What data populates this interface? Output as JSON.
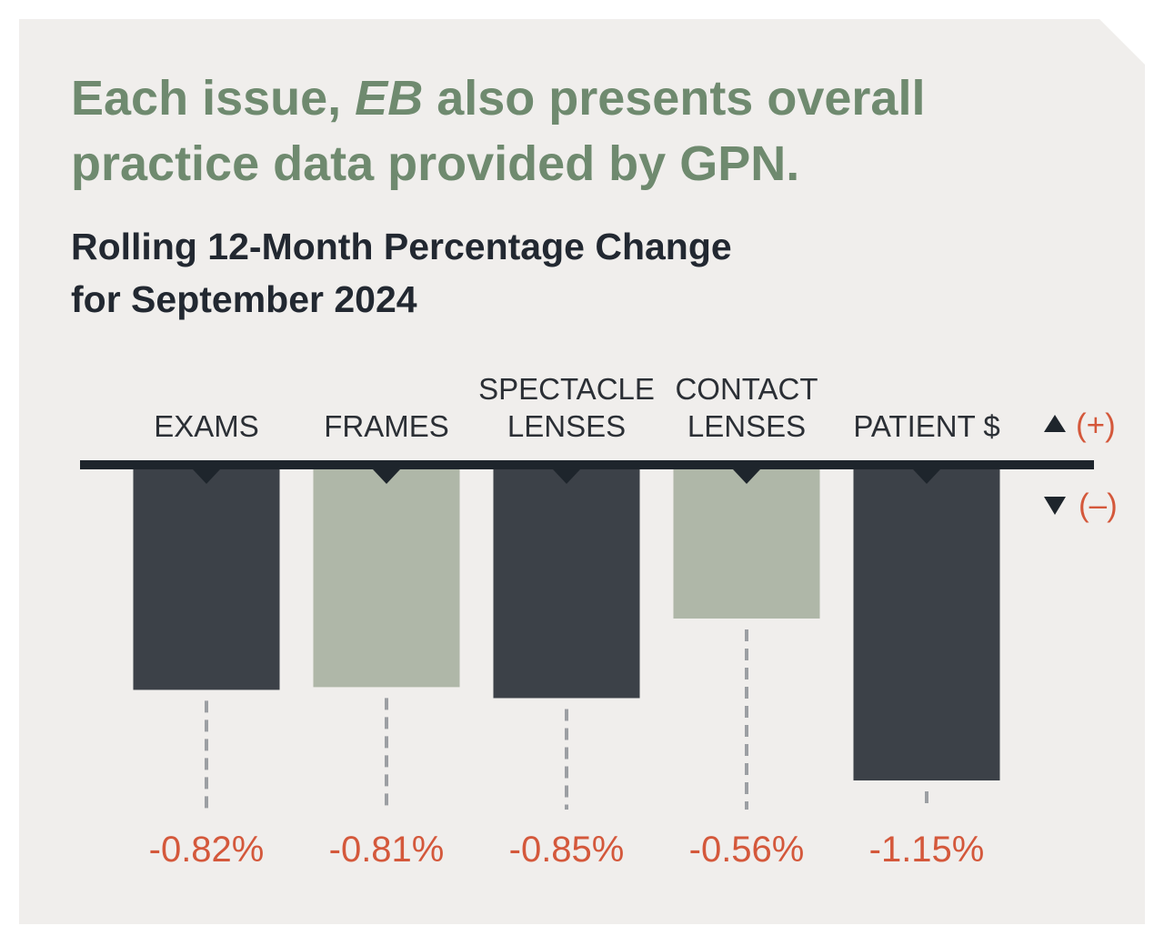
{
  "headline": {
    "prefix": "Each issue, ",
    "emphasis": "EB",
    "suffix": " also presents overall practice data provided by GPN."
  },
  "subtitle": {
    "line1": "Rolling 12-Month Percentage Change",
    "line2": "for September 2024"
  },
  "legend": {
    "positive": "(+)",
    "negative": "(–)"
  },
  "colors": {
    "background": "#f0eeec",
    "headline": "#6f8a6f",
    "dark_bar": "#3c4148",
    "light_bar": "#afb7a8",
    "value_text": "#d4583b",
    "axis": "#1e252c"
  },
  "chart_data": {
    "type": "bar",
    "title": "Rolling 12-Month Percentage Change for September 2024",
    "xlabel": "",
    "ylabel": "",
    "categories": [
      [
        "EXAMS"
      ],
      [
        "FRAMES"
      ],
      [
        "SPECTACLE",
        "LENSES"
      ],
      [
        "CONTACT",
        "LENSES"
      ],
      [
        "PATIENT $"
      ]
    ],
    "values": [
      -0.82,
      -0.81,
      -0.85,
      -0.56,
      -1.15
    ],
    "value_labels": [
      "-0.82%",
      "-0.81%",
      "-0.85%",
      "-0.56%",
      "-1.15%"
    ],
    "bar_colors": [
      "dark",
      "light",
      "dark",
      "light",
      "dark"
    ],
    "ylim": [
      -1.15,
      0
    ],
    "grid": false
  }
}
